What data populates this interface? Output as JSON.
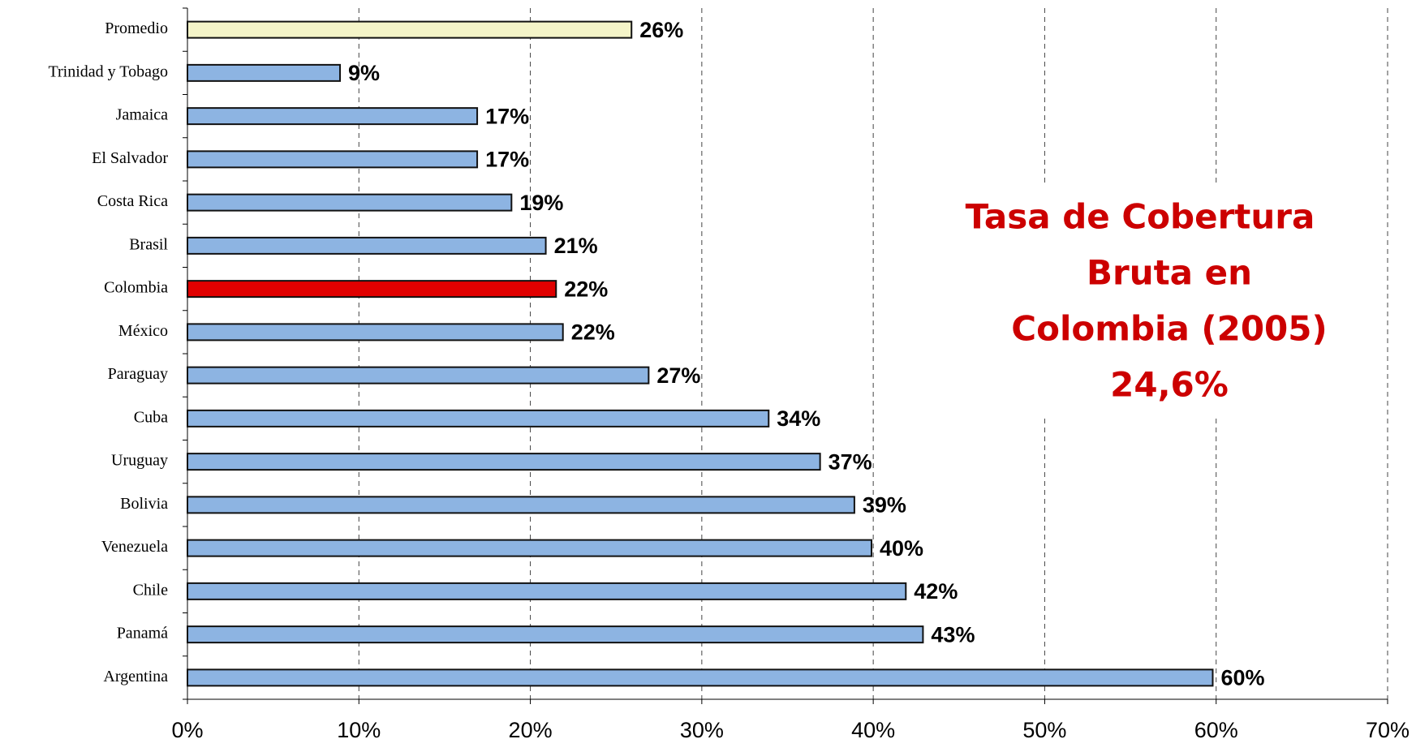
{
  "chart_data": {
    "type": "bar",
    "orientation": "horizontal",
    "categories": [
      "Promedio",
      "Trinidad y Tobago",
      "Jamaica",
      "El Salvador",
      "Costa Rica",
      "Brasil",
      "Colombia",
      "México",
      "Paraguay",
      "Cuba",
      "Uruguay",
      "Bolivia",
      "Venezuela",
      "Chile",
      "Panamá",
      "Argentina"
    ],
    "values": [
      25.9,
      8.9,
      16.9,
      16.9,
      18.9,
      20.9,
      21.5,
      21.9,
      26.9,
      33.9,
      36.9,
      38.9,
      39.9,
      41.9,
      42.9,
      59.8
    ],
    "value_labels": [
      "26%",
      "9%",
      "17%",
      "17%",
      "19%",
      "21%",
      "22%",
      "22%",
      "27%",
      "34%",
      "37%",
      "39%",
      "40%",
      "42%",
      "43%",
      "60%"
    ],
    "colors": [
      "#f4f4c8",
      "#8db4e2",
      "#8db4e2",
      "#8db4e2",
      "#8db4e2",
      "#8db4e2",
      "#e00000",
      "#8db4e2",
      "#8db4e2",
      "#8db4e2",
      "#8db4e2",
      "#8db4e2",
      "#8db4e2",
      "#8db4e2",
      "#8db4e2",
      "#8db4e2"
    ],
    "xlim": [
      0,
      70
    ],
    "xticks": [
      {
        "value": 0,
        "label": "0%"
      },
      {
        "value": 10,
        "label": "10%"
      },
      {
        "value": 20,
        "label": "20%"
      },
      {
        "value": 30,
        "label": "30%"
      },
      {
        "value": 40,
        "label": "40%"
      },
      {
        "value": 50,
        "label": "50%"
      },
      {
        "value": 60,
        "label": "60%"
      },
      {
        "value": 70,
        "label": "70%"
      }
    ],
    "grid": true,
    "annotation": [
      "Tasa de Cobertura",
      "Bruta  en",
      "Colombia (2005)",
      "24,6%"
    ],
    "annotation_color": "#cc0000"
  }
}
